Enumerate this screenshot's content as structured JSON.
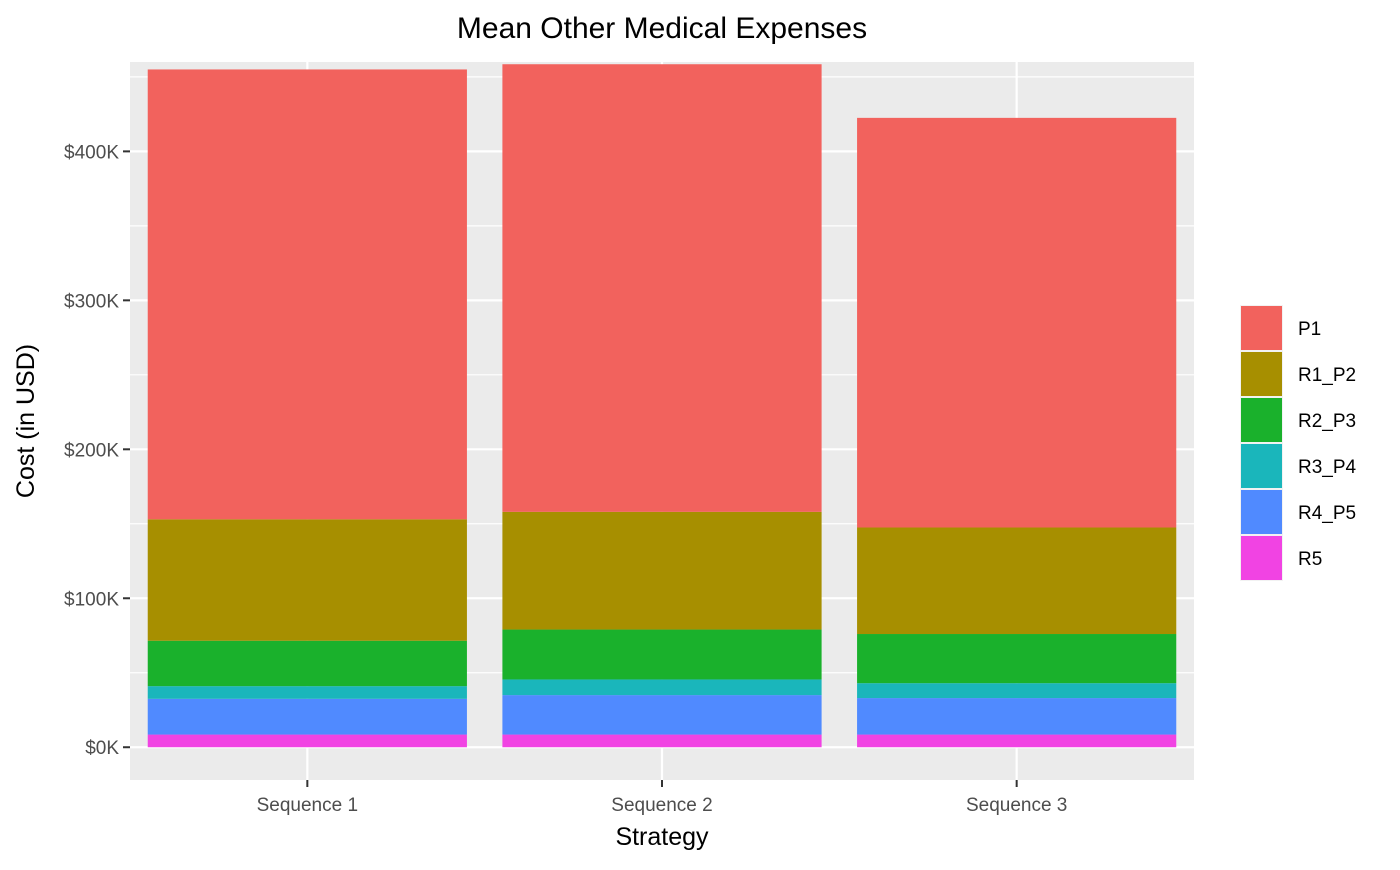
{
  "chart_data": {
    "type": "bar",
    "stacked": true,
    "title": "Mean Other Medical Expenses",
    "xlabel": "Strategy",
    "ylabel": "Cost (in USD)",
    "categories": [
      "Sequence 1",
      "Sequence 2",
      "Sequence 3"
    ],
    "ylim": [
      -22000,
      460000
    ],
    "yticks": [
      0,
      100000,
      200000,
      300000,
      400000
    ],
    "ytick_labels": [
      "$0K",
      "$100K",
      "$200K",
      "$300K",
      "$400K"
    ],
    "grid": true,
    "legend_position": "right",
    "series": [
      {
        "name": "R5",
        "color": "#F143E3",
        "values": [
          8500,
          8500,
          8500
        ]
      },
      {
        "name": "R4_P5",
        "color": "#508AFF",
        "values": [
          24000,
          26500,
          24500
        ]
      },
      {
        "name": "R3_P4",
        "color": "#1AB6BB",
        "values": [
          8500,
          10500,
          10000
        ]
      },
      {
        "name": "R2_P3",
        "color": "#1AB12C",
        "values": [
          30500,
          33500,
          33000
        ]
      },
      {
        "name": "R1_P2",
        "color": "#A78F00",
        "values": [
          81500,
          79000,
          71500
        ]
      },
      {
        "name": "P1",
        "color": "#F2625D",
        "values": [
          302000,
          300500,
          275000
        ]
      }
    ],
    "legend_order": [
      "P1",
      "R1_P2",
      "R2_P3",
      "R3_P4",
      "R4_P5",
      "R5"
    ]
  }
}
